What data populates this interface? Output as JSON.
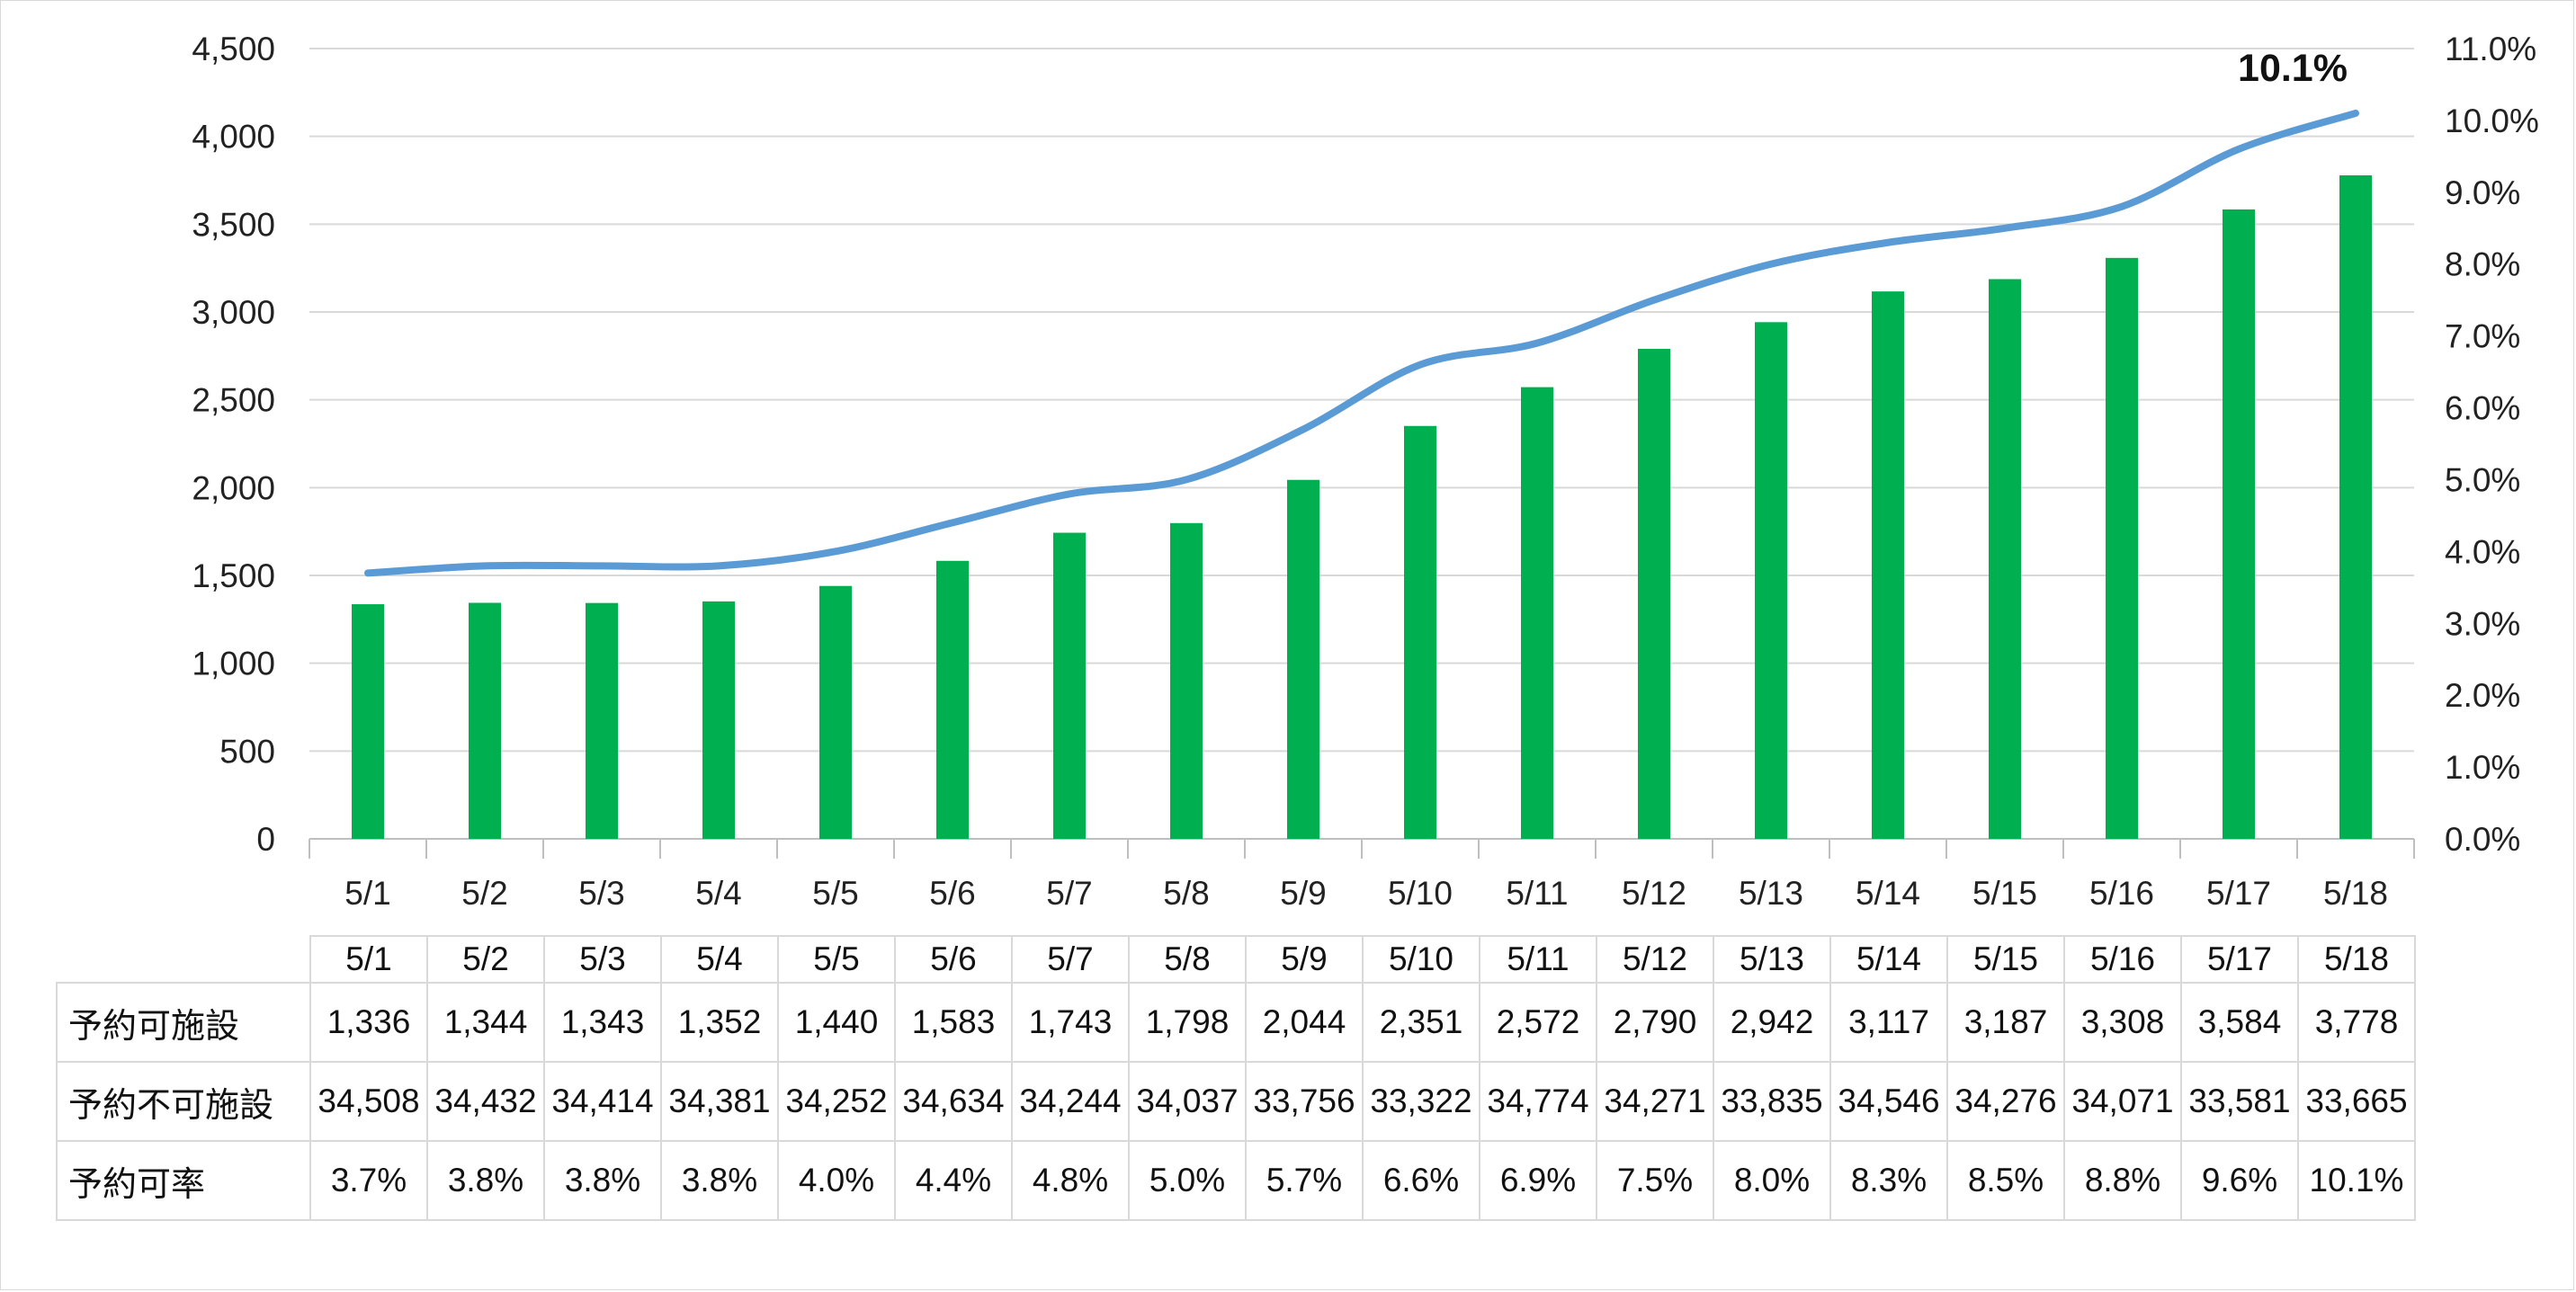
{
  "chart_data": {
    "type": "bar",
    "categories": [
      "5/1",
      "5/2",
      "5/3",
      "5/4",
      "5/5",
      "5/6",
      "5/7",
      "5/8",
      "5/9",
      "5/10",
      "5/11",
      "5/12",
      "5/13",
      "5/14",
      "5/15",
      "5/16",
      "5/17",
      "5/18"
    ],
    "series": [
      {
        "name": "予約可施設",
        "type": "bar",
        "axis": "left",
        "color": "#00b050",
        "values": [
          1336,
          1344,
          1343,
          1352,
          1440,
          1583,
          1743,
          1798,
          2044,
          2351,
          2572,
          2790,
          2942,
          3117,
          3187,
          3308,
          3584,
          3778
        ]
      },
      {
        "name": "予約可率",
        "type": "line",
        "axis": "right",
        "color": "#5b9bd5",
        "values": [
          3.7,
          3.8,
          3.8,
          3.8,
          4.0,
          4.4,
          4.8,
          5.0,
          5.7,
          6.6,
          6.9,
          7.5,
          8.0,
          8.3,
          8.5,
          8.8,
          9.6,
          10.1
        ]
      }
    ],
    "ylim": [
      0,
      4500
    ],
    "y_ticks": [
      "0",
      "500",
      "1,000",
      "1,500",
      "2,000",
      "2,500",
      "3,000",
      "3,500",
      "4,000",
      "4,500"
    ],
    "y2lim": [
      0,
      11
    ],
    "y2_ticks": [
      "0.0%",
      "1.0%",
      "2.0%",
      "3.0%",
      "4.0%",
      "5.0%",
      "6.0%",
      "7.0%",
      "8.0%",
      "9.0%",
      "10.0%",
      "11.0%"
    ],
    "end_label": "10.1%",
    "grid": true,
    "title": "",
    "xlabel": "",
    "ylabel": ""
  },
  "table": {
    "row_labels": [
      "予約可施設",
      "予約不可施設",
      "予約可率"
    ],
    "available": [
      "1,336",
      "1,344",
      "1,343",
      "1,352",
      "1,440",
      "1,583",
      "1,743",
      "1,798",
      "2,044",
      "2,351",
      "2,572",
      "2,790",
      "2,942",
      "3,117",
      "3,187",
      "3,308",
      "3,584",
      "3,778"
    ],
    "unavailable": [
      "34,508",
      "34,432",
      "34,414",
      "34,381",
      "34,252",
      "34,634",
      "34,244",
      "34,037",
      "33,756",
      "33,322",
      "34,774",
      "34,271",
      "33,835",
      "34,546",
      "34,276",
      "34,071",
      "33,581",
      "33,665"
    ],
    "rate": [
      "3.7%",
      "3.8%",
      "3.8%",
      "3.8%",
      "4.0%",
      "4.4%",
      "4.8%",
      "5.0%",
      "5.7%",
      "6.6%",
      "6.9%",
      "7.5%",
      "8.0%",
      "8.3%",
      "8.5%",
      "8.8%",
      "9.6%",
      "10.1%"
    ]
  }
}
